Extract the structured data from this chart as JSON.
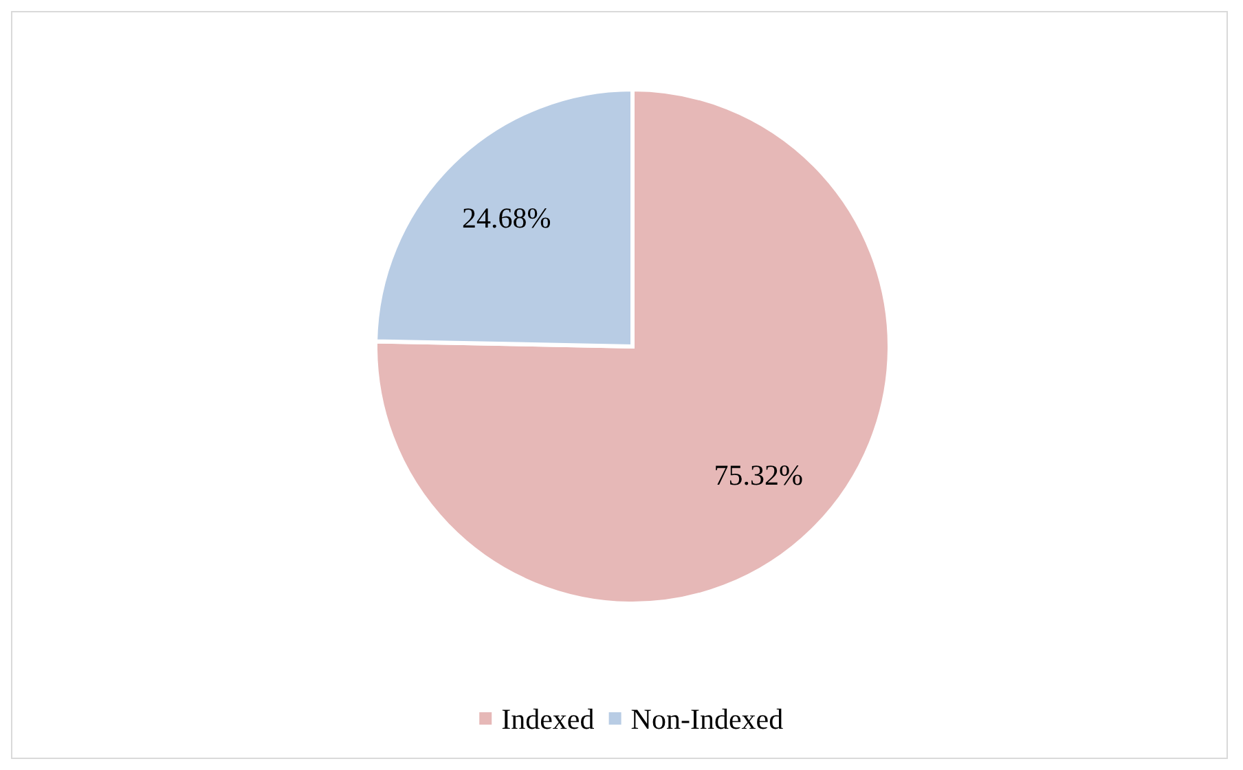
{
  "chart_data": {
    "type": "pie",
    "categories": [
      "Indexed",
      "Non-Indexed"
    ],
    "values": [
      75.32,
      24.68
    ],
    "colors": [
      "#e6b8b7",
      "#b8cce4"
    ],
    "value_labels": [
      "75.32%",
      "24.68%"
    ],
    "legend": "bottom"
  }
}
